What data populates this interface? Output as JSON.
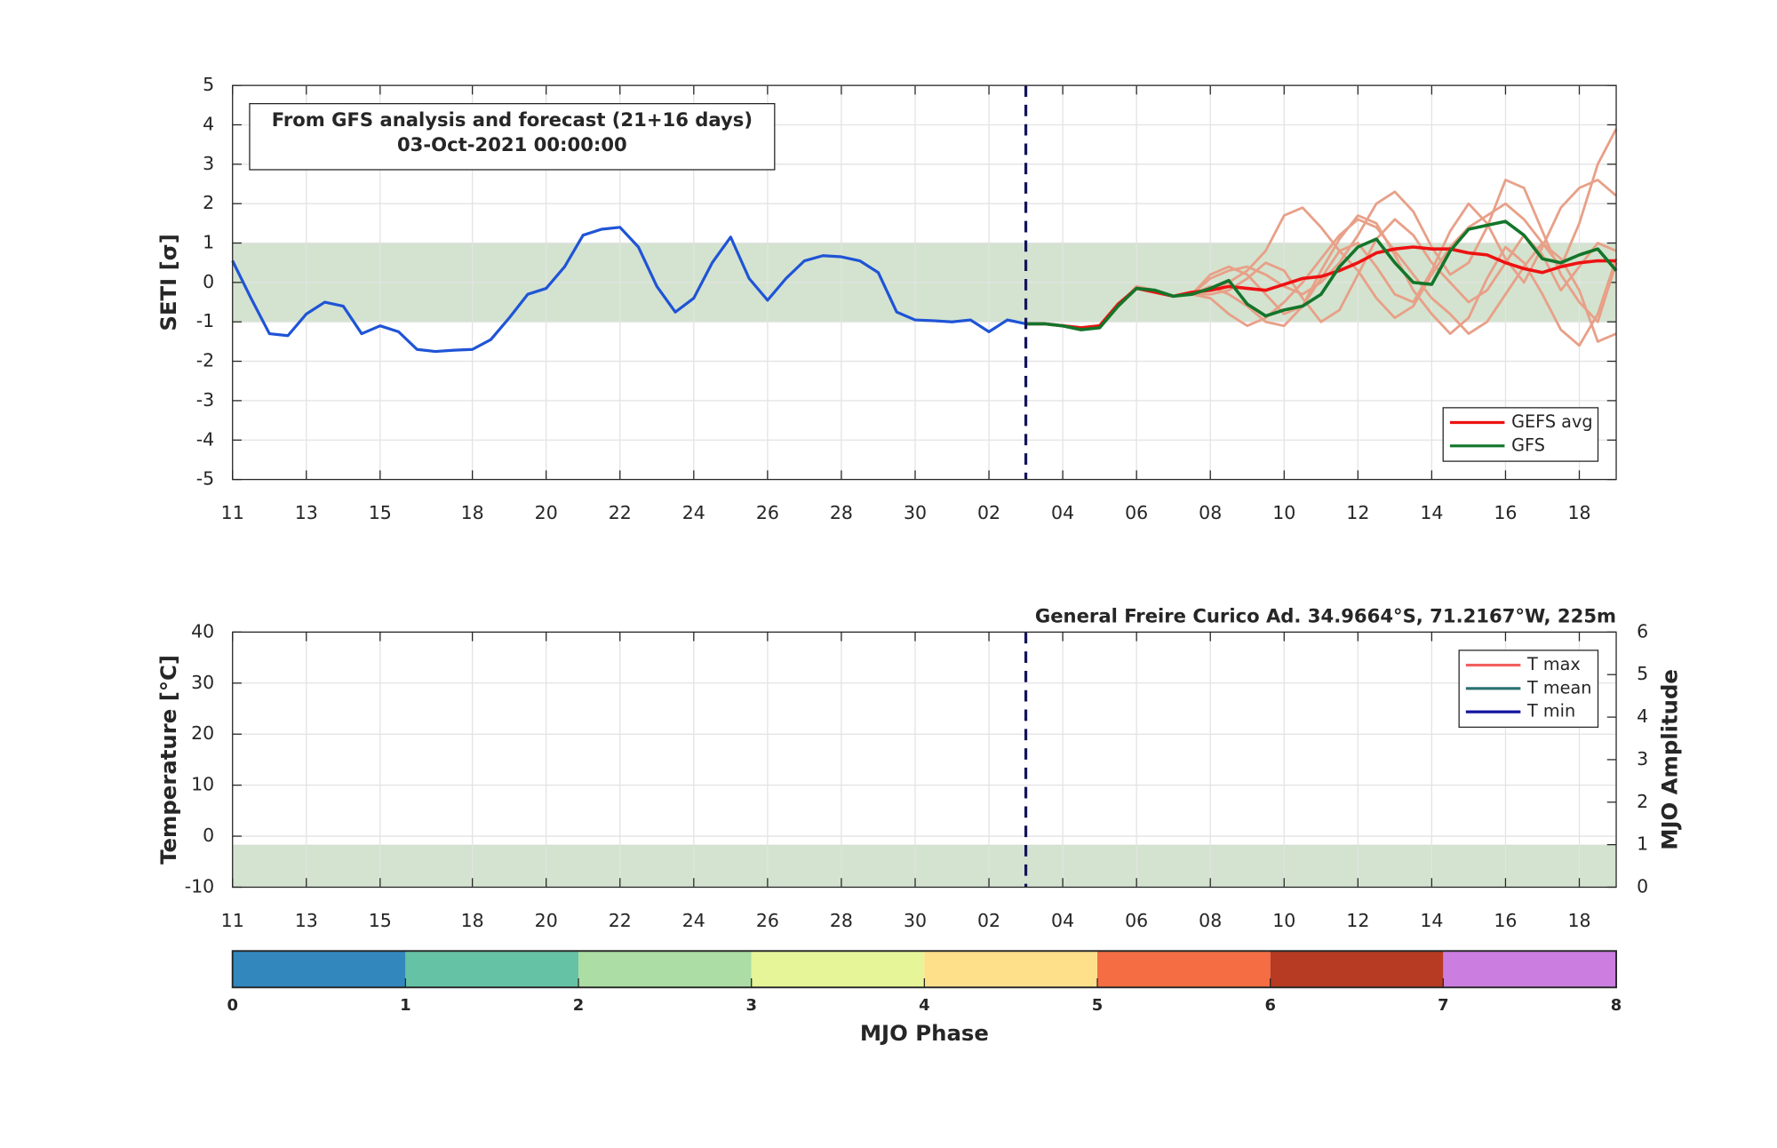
{
  "chart_data": [
    {
      "type": "line",
      "title_lines": [
        "From GFS analysis and forecast (21+16 days)",
        "03-Oct-2021 00:00:00"
      ],
      "ylabel": "SETI [σ]",
      "xlim": [
        0,
        37.5
      ],
      "xticks": [
        {
          "value": 0,
          "label": "11"
        },
        {
          "value": 2,
          "label": "13"
        },
        {
          "value": 4,
          "label": "15"
        },
        {
          "value": 6.5,
          "label": "18"
        },
        {
          "value": 8.5,
          "label": "20"
        },
        {
          "value": 10.5,
          "label": "22"
        },
        {
          "value": 12.5,
          "label": "24"
        },
        {
          "value": 14.5,
          "label": "26"
        },
        {
          "value": 16.5,
          "label": "28"
        },
        {
          "value": 18.5,
          "label": "30"
        },
        {
          "value": 20.5,
          "label": "02"
        },
        {
          "value": 22.5,
          "label": "04"
        },
        {
          "value": 24.5,
          "label": "06"
        },
        {
          "value": 26.5,
          "label": "08"
        },
        {
          "value": 28.5,
          "label": "10"
        },
        {
          "value": 30.5,
          "label": "12"
        },
        {
          "value": 32.5,
          "label": "14"
        },
        {
          "value": 34.5,
          "label": "16"
        },
        {
          "value": 36.5,
          "label": "18"
        }
      ],
      "ylim": [
        -5,
        5
      ],
      "yticks": [
        -5,
        -4,
        -3,
        -2,
        -1,
        0,
        1,
        2,
        3,
        4,
        5
      ],
      "grid": true,
      "band": [
        -1,
        1
      ],
      "band_color": "#d3e3cf",
      "vline": 21.5,
      "vline_color": "#14145a",
      "legend": "lower right",
      "analysis": {
        "color": "#1f54d6",
        "x": [
          0,
          0.5,
          1,
          1.5,
          2,
          2.5,
          3,
          3.5,
          4,
          4.5,
          5,
          5.5,
          6,
          6.5,
          7,
          7.5,
          8,
          8.5,
          9,
          9.5,
          10,
          10.5,
          11,
          11.5,
          12,
          12.5,
          13,
          13.5,
          14,
          14.5,
          15,
          15.5,
          16,
          16.5,
          17,
          17.5,
          18,
          18.5,
          19,
          19.5,
          20,
          20.5,
          21,
          21.5
        ],
        "values": [
          0.55,
          -0.4,
          -1.3,
          -1.35,
          -0.8,
          -0.5,
          -0.6,
          -1.3,
          -1.1,
          -1.25,
          -1.7,
          -1.75,
          -1.72,
          -1.7,
          -1.45,
          -0.9,
          -0.3,
          -0.15,
          0.4,
          1.2,
          1.35,
          1.4,
          0.9,
          -0.1,
          -0.75,
          -0.4,
          0.5,
          1.15,
          0.1,
          -0.45,
          0.1,
          0.55,
          0.68,
          0.65,
          0.55,
          0.25,
          -0.75,
          -0.95,
          -0.97,
          -1.0,
          -0.95,
          -1.25,
          -0.95,
          -1.05
        ]
      },
      "ensemble": {
        "color": "#e8a088",
        "x": [
          21.5,
          22,
          22.5,
          23,
          23.5,
          24,
          24.5,
          25,
          25.5,
          26,
          26.5,
          27,
          27.5,
          28,
          28.5,
          29,
          29.5,
          30,
          30.5,
          31,
          31.5,
          32,
          32.5,
          33,
          33.5,
          34,
          34.5,
          35,
          35.5,
          36,
          36.5,
          37,
          37.5
        ],
        "members": [
          [
            -1.05,
            -1.05,
            -1.1,
            -1.15,
            -1.1,
            -0.6,
            -0.1,
            -0.2,
            -0.35,
            -0.3,
            -0.2,
            0.0,
            0.3,
            0.8,
            1.7,
            1.9,
            1.4,
            0.8,
            0.3,
            -0.4,
            -0.9,
            -0.6,
            0.2,
            0.9,
            1.4,
            1.7,
            2.0,
            1.6,
            1.0,
            0.4,
            1.5,
            3.0,
            3.9
          ],
          [
            -1.05,
            -1.05,
            -1.1,
            -1.15,
            -1.1,
            -0.6,
            -0.1,
            -0.2,
            -0.35,
            -0.3,
            -0.4,
            -0.8,
            -1.1,
            -0.9,
            -0.5,
            0.0,
            0.6,
            1.2,
            1.6,
            1.4,
            0.8,
            0.2,
            -0.4,
            -0.8,
            -1.3,
            -1.0,
            -0.3,
            0.4,
            1.0,
            0.6,
            -0.2,
            -1.5,
            -1.3
          ],
          [
            -1.05,
            -1.05,
            -1.1,
            -1.15,
            -1.1,
            -0.6,
            -0.1,
            -0.2,
            -0.35,
            -0.3,
            0.1,
            0.3,
            0.4,
            0.2,
            -0.1,
            -0.3,
            0.0,
            0.5,
            1.2,
            2.0,
            2.3,
            1.8,
            0.9,
            0.2,
            0.5,
            1.4,
            2.6,
            2.4,
            1.3,
            0.2,
            -0.5,
            -1.0,
            0.5
          ],
          [
            -1.05,
            -1.05,
            -1.1,
            -1.15,
            -1.1,
            -0.6,
            -0.1,
            -0.2,
            -0.35,
            -0.3,
            -0.1,
            -0.3,
            -0.6,
            -1.0,
            -1.1,
            -0.6,
            0.3,
            1.1,
            1.7,
            1.5,
            0.7,
            -0.2,
            -0.8,
            -1.3,
            -0.9,
            0.1,
            0.9,
            0.5,
            -0.3,
            -1.2,
            -1.6,
            -0.8,
            0.6
          ],
          [
            -1.05,
            -1.05,
            -1.1,
            -1.15,
            -1.1,
            -0.6,
            -0.1,
            -0.2,
            -0.35,
            -0.3,
            0.2,
            0.4,
            0.2,
            -0.3,
            -0.8,
            -0.6,
            0.1,
            0.8,
            1.0,
            0.4,
            -0.3,
            -0.5,
            0.3,
            1.3,
            2.0,
            1.5,
            0.6,
            0.0,
            0.9,
            1.9,
            2.4,
            2.6,
            2.2
          ],
          [
            -1.05,
            -1.05,
            -1.1,
            -1.15,
            -1.1,
            -0.6,
            -0.1,
            -0.2,
            -0.35,
            -0.3,
            -0.3,
            -0.2,
            0.1,
            0.5,
            0.3,
            -0.4,
            -1.0,
            -0.7,
            0.2,
            1.1,
            1.6,
            1.2,
            0.5,
            0.0,
            -0.5,
            -0.2,
            0.5,
            1.2,
            0.7,
            -0.2,
            0.4,
            1.0,
            0.8
          ]
        ]
      },
      "series": [
        {
          "name": "GEFS avg",
          "color": "#ee1111",
          "x": [
            21.5,
            22,
            22.5,
            23,
            23.5,
            24,
            24.5,
            25,
            25.5,
            26,
            26.5,
            27,
            27.5,
            28,
            28.5,
            29,
            29.5,
            30,
            30.5,
            31,
            31.5,
            32,
            32.5,
            33,
            33.5,
            34,
            34.5,
            35,
            35.5,
            36,
            36.5,
            37,
            37.5
          ],
          "values": [
            -1.05,
            -1.05,
            -1.1,
            -1.15,
            -1.1,
            -0.55,
            -0.15,
            -0.25,
            -0.35,
            -0.25,
            -0.2,
            -0.1,
            -0.15,
            -0.2,
            -0.05,
            0.1,
            0.15,
            0.3,
            0.5,
            0.75,
            0.85,
            0.9,
            0.85,
            0.85,
            0.75,
            0.7,
            0.5,
            0.35,
            0.25,
            0.4,
            0.5,
            0.55,
            0.55
          ]
        },
        {
          "name": "GFS",
          "color": "#13752a",
          "x": [
            21.5,
            22,
            22.5,
            23,
            23.5,
            24,
            24.5,
            25,
            25.5,
            26,
            26.5,
            27,
            27.5,
            28,
            28.5,
            29,
            29.5,
            30,
            30.5,
            31,
            31.5,
            32,
            32.5,
            33,
            33.5,
            34,
            34.5,
            35,
            35.5,
            36,
            36.5,
            37,
            37.5
          ],
          "values": [
            -1.05,
            -1.05,
            -1.1,
            -1.2,
            -1.15,
            -0.6,
            -0.15,
            -0.2,
            -0.35,
            -0.3,
            -0.15,
            0.05,
            -0.55,
            -0.85,
            -0.7,
            -0.6,
            -0.3,
            0.4,
            0.9,
            1.1,
            0.5,
            0.0,
            -0.05,
            0.8,
            1.35,
            1.45,
            1.55,
            1.2,
            0.6,
            0.5,
            0.7,
            0.85,
            0.3
          ]
        }
      ]
    },
    {
      "type": "line",
      "title": "General Freire Curico Ad. 34.9664°S, 71.2167°W, 225m",
      "ylabel": "Temperature [°C]",
      "y2label": "MJO Amplitude",
      "xlim": [
        0,
        37.5
      ],
      "xticks": [
        {
          "value": 0,
          "label": "11"
        },
        {
          "value": 2,
          "label": "13"
        },
        {
          "value": 4,
          "label": "15"
        },
        {
          "value": 6.5,
          "label": "18"
        },
        {
          "value": 8.5,
          "label": "20"
        },
        {
          "value": 10.5,
          "label": "22"
        },
        {
          "value": 12.5,
          "label": "24"
        },
        {
          "value": 14.5,
          "label": "26"
        },
        {
          "value": 16.5,
          "label": "28"
        },
        {
          "value": 18.5,
          "label": "30"
        },
        {
          "value": 20.5,
          "label": "02"
        },
        {
          "value": 22.5,
          "label": "04"
        },
        {
          "value": 24.5,
          "label": "06"
        },
        {
          "value": 26.5,
          "label": "08"
        },
        {
          "value": 28.5,
          "label": "10"
        },
        {
          "value": 30.5,
          "label": "12"
        },
        {
          "value": 32.5,
          "label": "14"
        },
        {
          "value": 34.5,
          "label": "16"
        },
        {
          "value": 36.5,
          "label": "18"
        }
      ],
      "ylim": [
        -10,
        40
      ],
      "yticks": [
        -10,
        0,
        10,
        20,
        30,
        40
      ],
      "y2lim": [
        0,
        6
      ],
      "y2ticks": [
        0,
        1,
        2,
        3,
        4,
        5,
        6
      ],
      "grid": true,
      "band": [
        0,
        1
      ],
      "band_axis": "y2",
      "band_color": "#d3e3cf",
      "vline": 21.5,
      "vline_color": "#14145a",
      "legend": "upper right",
      "series": [
        {
          "name": "T max",
          "color": "#f26060"
        },
        {
          "name": "T mean",
          "color": "#2a7070"
        },
        {
          "name": "T min",
          "color": "#1414a0"
        }
      ]
    },
    {
      "type": "colorbar",
      "xlabel": "MJO Phase",
      "xlim": [
        0,
        8
      ],
      "xticks": [
        0,
        1,
        2,
        3,
        4,
        5,
        6,
        7,
        8
      ],
      "colors": [
        "#3288bd",
        "#66c2a5",
        "#abdda4",
        "#e6f598",
        "#fee08b",
        "#f46d43",
        "#b73a22",
        "#cc7ee0"
      ]
    }
  ]
}
